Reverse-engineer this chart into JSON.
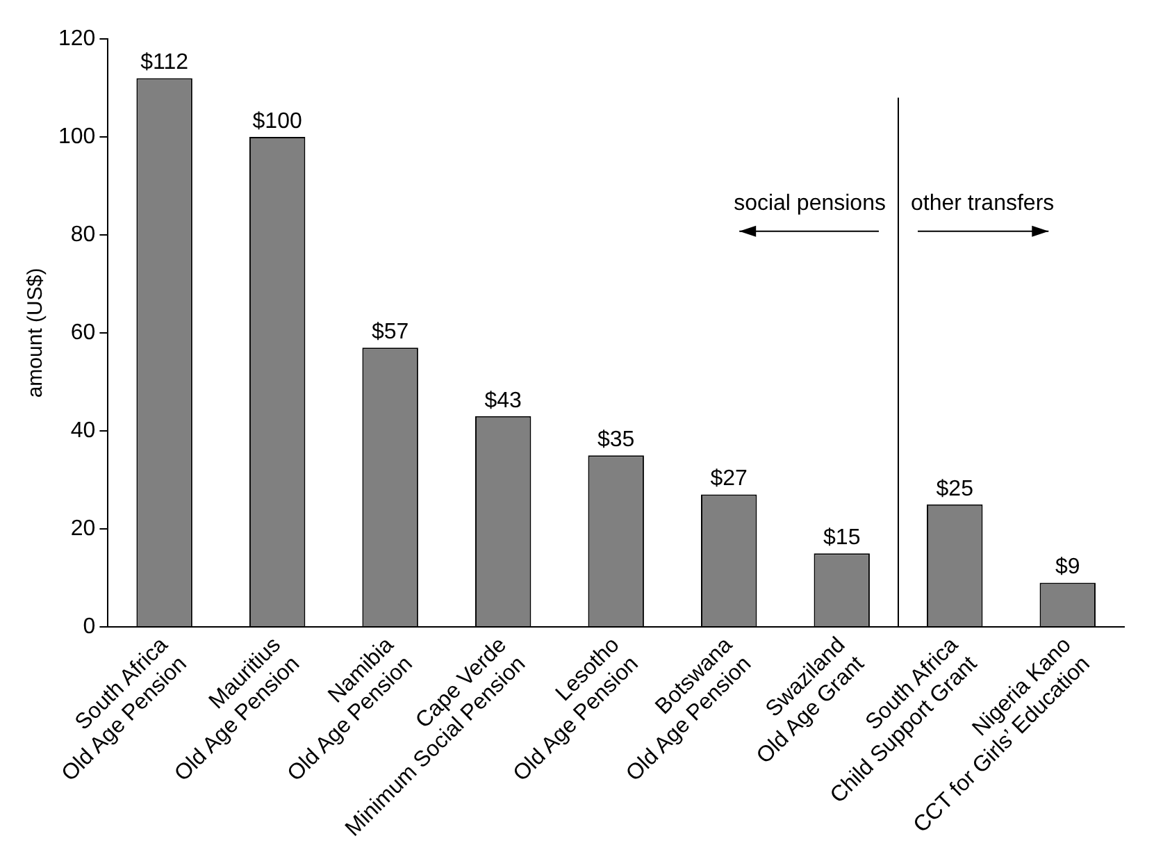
{
  "chart_data": {
    "type": "bar",
    "ylabel": "amount (US$)",
    "categories": [
      "South Africa\nOld Age Pension",
      "Mauritius\nOld Age Pension",
      "Namibia\nOld Age Pension",
      "Cape Verde\nMinimum Social Pension",
      "Lesotho\nOld Age Pension",
      "Botswana\nOld Age Pension",
      "Swaziland\nOld Age Grant",
      "South Africa\nChild Support Grant",
      "Nigeria Kano\nCCT for Girls’ Education"
    ],
    "values": [
      112,
      100,
      57,
      43,
      35,
      27,
      15,
      25,
      9
    ],
    "value_labels": [
      "$112",
      "$100",
      "$57",
      "$43",
      "$35",
      "$27",
      "$15",
      "$25",
      "$9"
    ],
    "color": "#808080",
    "ylim": [
      0,
      120
    ],
    "yticks": [
      0,
      20,
      40,
      60,
      80,
      100,
      120
    ],
    "annotations": [
      "social pensions",
      "other transfers"
    ]
  }
}
